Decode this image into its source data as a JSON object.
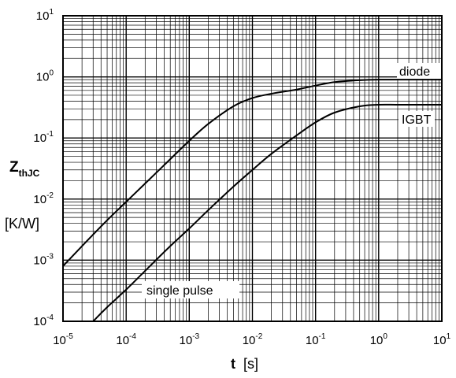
{
  "chart_data": {
    "type": "line",
    "scale": {
      "x": "log",
      "y": "log"
    },
    "xlim": [
      1e-05,
      10
    ],
    "ylim": [
      0.0001,
      10
    ],
    "grid": true,
    "x_ticks": [
      {
        "base": "10",
        "exp": "-5"
      },
      {
        "base": "10",
        "exp": "-4"
      },
      {
        "base": "10",
        "exp": "-3"
      },
      {
        "base": "10",
        "exp": "-2"
      },
      {
        "base": "10",
        "exp": "-1"
      },
      {
        "base": "10",
        "exp": "0"
      },
      {
        "base": "10",
        "exp": "1"
      }
    ],
    "y_ticks": [
      {
        "base": "10",
        "exp": "-4"
      },
      {
        "base": "10",
        "exp": "-3"
      },
      {
        "base": "10",
        "exp": "-2"
      },
      {
        "base": "10",
        "exp": "-1"
      },
      {
        "base": "10",
        "exp": "0"
      },
      {
        "base": "10",
        "exp": "1"
      }
    ],
    "xlabel": {
      "symbol": "t",
      "unit": "[s]"
    },
    "ylabel": {
      "symbol": "Z",
      "subscript": "thJC",
      "unit": "[K/W]"
    },
    "annotations": {
      "pulse": "single pulse"
    },
    "series": [
      {
        "name": "diode",
        "x": [
          1e-05,
          2e-05,
          5e-05,
          0.0001,
          0.0002,
          0.0005,
          0.001,
          0.002,
          0.005,
          0.01,
          0.02,
          0.05,
          0.1,
          0.2,
          0.5,
          1,
          2,
          5,
          10
        ],
        "y": [
          0.0008,
          0.0017,
          0.0045,
          0.009,
          0.018,
          0.045,
          0.09,
          0.17,
          0.33,
          0.45,
          0.53,
          0.62,
          0.72,
          0.82,
          0.88,
          0.9,
          0.9,
          0.9,
          0.9
        ]
      },
      {
        "name": "IGBT",
        "x": [
          3e-05,
          5e-05,
          0.0001,
          0.0002,
          0.0005,
          0.001,
          0.002,
          0.005,
          0.01,
          0.02,
          0.05,
          0.1,
          0.2,
          0.5,
          1,
          2,
          5,
          10
        ],
        "y": [
          0.0001,
          0.00017,
          0.00033,
          0.00067,
          0.0017,
          0.0033,
          0.0066,
          0.016,
          0.03,
          0.055,
          0.11,
          0.18,
          0.26,
          0.33,
          0.35,
          0.35,
          0.35,
          0.35
        ]
      }
    ]
  }
}
